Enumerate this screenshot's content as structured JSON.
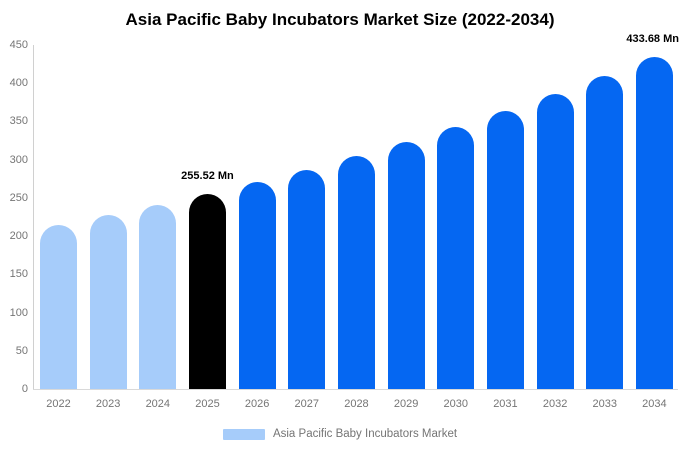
{
  "title": "Asia Pacific Baby Incubators Market Size (2022-2034)",
  "legend": {
    "label": "Asia Pacific Baby Incubators Market",
    "swatch_color": "#a6ccfa"
  },
  "colors": {
    "historical": "#a6ccfa",
    "highlight": "#000000",
    "forecast": "#0567f2",
    "axis_text": "#757575",
    "axis_line": "#d0d0d0",
    "data_label_text": "#000000"
  },
  "chart_data": {
    "type": "bar",
    "title": "Asia Pacific Baby Incubators Market Size (2022-2034)",
    "unit": "Mn",
    "categories": [
      "2022",
      "2023",
      "2024",
      "2025",
      "2026",
      "2027",
      "2028",
      "2029",
      "2030",
      "2031",
      "2032",
      "2033",
      "2034"
    ],
    "values": [
      214,
      227,
      241,
      255.52,
      271,
      287,
      305,
      323,
      343,
      364,
      386,
      409,
      433.68
    ],
    "point_colors": [
      "historical",
      "historical",
      "historical",
      "highlight",
      "forecast",
      "forecast",
      "forecast",
      "forecast",
      "forecast",
      "forecast",
      "forecast",
      "forecast",
      "forecast"
    ],
    "data_labels": [
      {
        "index": 3,
        "text": "255.52 Mn"
      },
      {
        "index": 12,
        "text": "433.68 Mn"
      }
    ],
    "xlabel": "",
    "ylabel": "",
    "ylim": [
      0,
      450
    ],
    "ytick_step": 50,
    "ytick_labels": [
      "0",
      "50",
      "100",
      "150",
      "200",
      "250",
      "300",
      "350",
      "400",
      "450"
    ],
    "grid": false,
    "legend_position": "bottom",
    "legend_entries": [
      "Asia Pacific Baby Incubators Market"
    ]
  }
}
